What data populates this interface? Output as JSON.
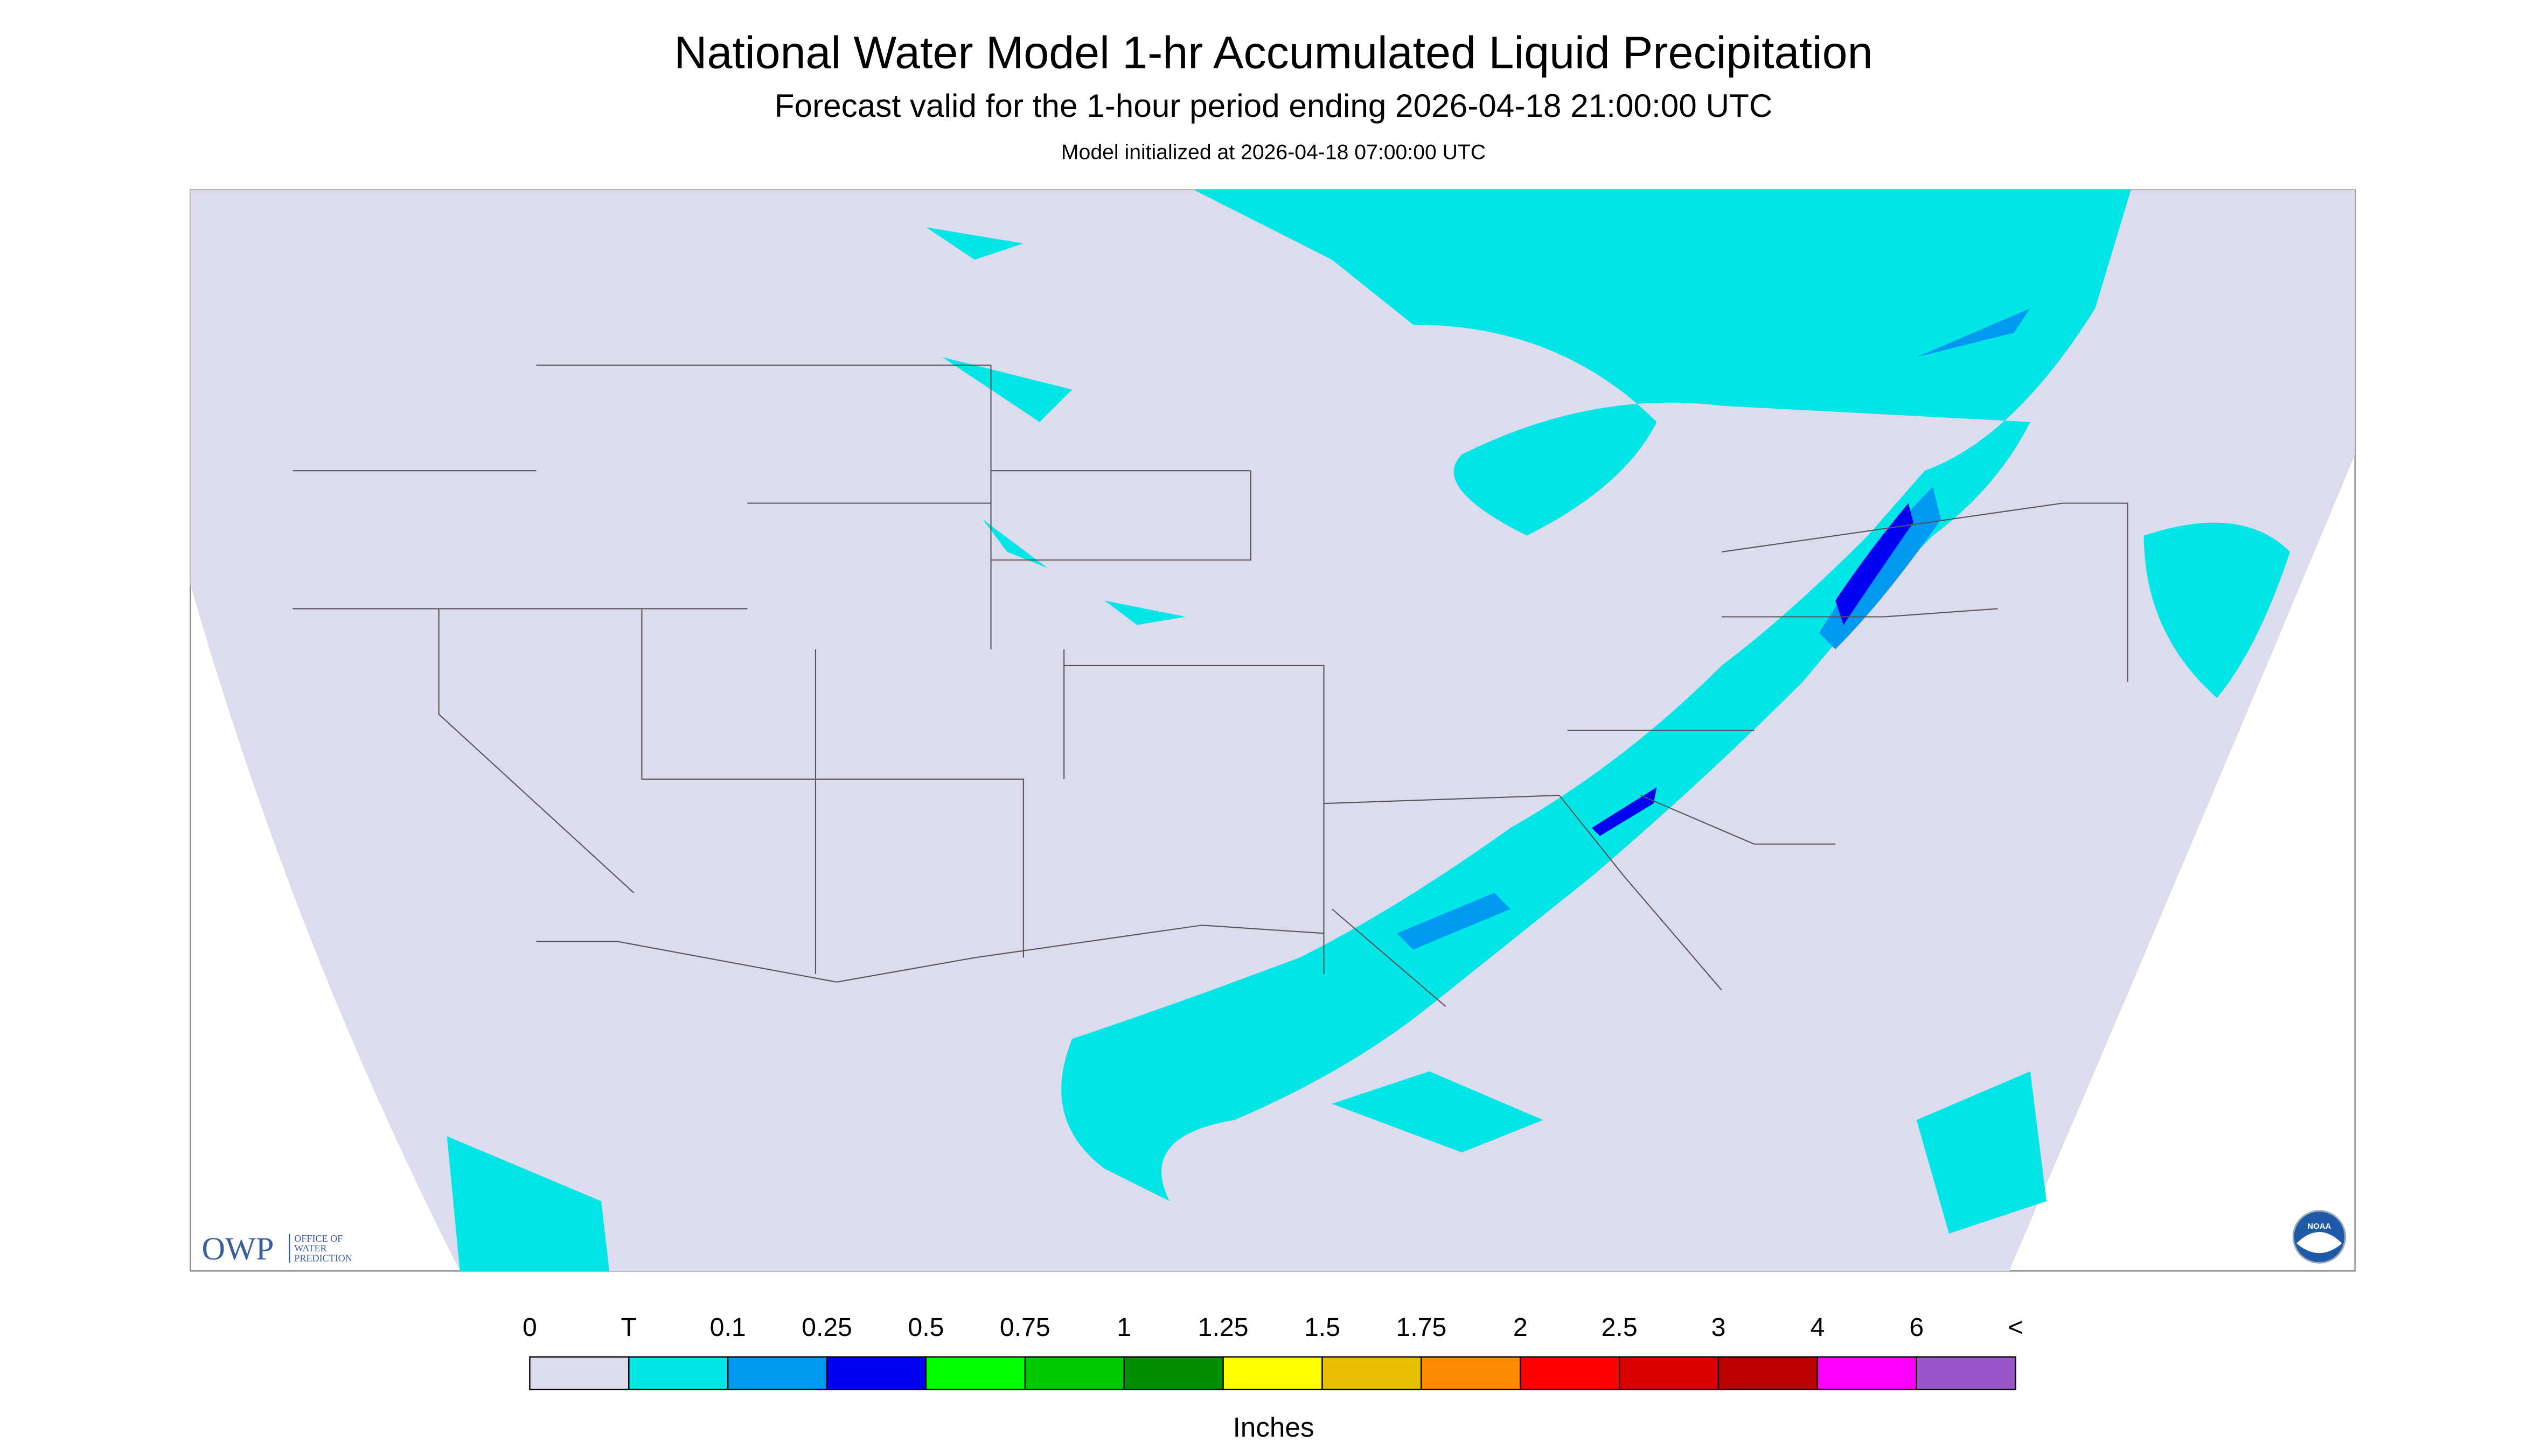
{
  "header": {
    "title": "National Water Model 1-hr Accumulated Liquid Precipitation",
    "subtitle": "Forecast valid for the 1-hour period ending 2026-04-18 21:00:00 UTC",
    "init": "Model initialized at 2026-04-18 07:00:00 UTC"
  },
  "legend": {
    "labels": [
      "0",
      "T",
      "0.1",
      "0.25",
      "0.5",
      "0.75",
      "1",
      "1.25",
      "1.5",
      "1.75",
      "2",
      "2.5",
      "3",
      "4",
      "6",
      "<"
    ],
    "colors": [
      "#dcdcee",
      "#00e6e6",
      "#0099f2",
      "#0000f0",
      "#00ff00",
      "#00c800",
      "#008c00",
      "#ffff00",
      "#e6bf00",
      "#ff8c00",
      "#ff0000",
      "#db0000",
      "#bd0000",
      "#ff00ff",
      "#9955c9"
    ],
    "units": "Inches"
  },
  "logos": {
    "owp": "OWP",
    "owp_name": [
      "OFFICE OF",
      "WATER",
      "PREDICTION"
    ],
    "noaa": "NOAA"
  }
}
